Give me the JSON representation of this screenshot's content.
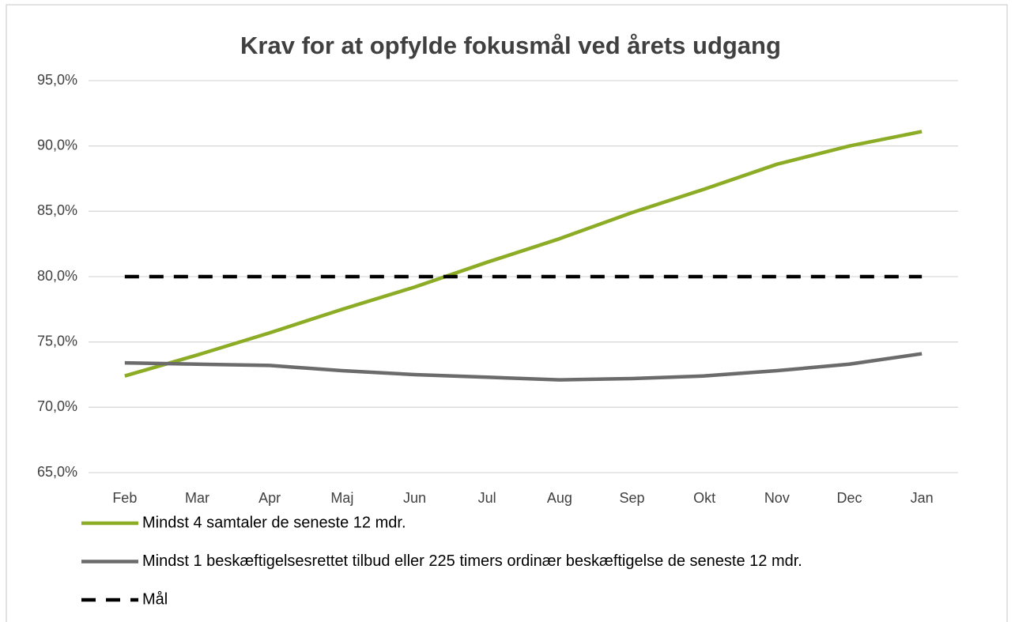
{
  "chart_data": {
    "type": "line",
    "title": "Krav for at opfylde fokusmål ved årets udgang",
    "categories": [
      "Feb",
      "Mar",
      "Apr",
      "Maj",
      "Jun",
      "Jul",
      "Aug",
      "Sep",
      "Okt",
      "Nov",
      "Dec",
      "Jan"
    ],
    "series": [
      {
        "name": "Mindst 4 samtaler de seneste 12 mdr.",
        "color": "#8cac26",
        "dash": "solid",
        "values": [
          72.4,
          74.0,
          75.7,
          77.5,
          79.2,
          81.1,
          82.9,
          84.9,
          86.7,
          88.6,
          90.0,
          91.1
        ]
      },
      {
        "name": "Mindst 1 beskæftigelsesrettet tilbud eller 225 timers ordinær beskæftigelse de seneste 12 mdr.",
        "color": "#6b6b6b",
        "dash": "solid",
        "values": [
          73.4,
          73.3,
          73.2,
          72.8,
          72.5,
          72.3,
          72.1,
          72.2,
          72.4,
          72.8,
          73.3,
          74.1
        ]
      },
      {
        "name": "Mål",
        "color": "#000000",
        "dash": "dashed",
        "values": [
          80,
          80,
          80,
          80,
          80,
          80,
          80,
          80,
          80,
          80,
          80,
          80
        ]
      }
    ],
    "ylim": [
      65,
      95
    ],
    "yticks": [
      {
        "value": 65,
        "label": "65,0%"
      },
      {
        "value": 70,
        "label": "70,0%"
      },
      {
        "value": 75,
        "label": "75,0%"
      },
      {
        "value": 80,
        "label": "80,0%"
      },
      {
        "value": 85,
        "label": "85,0%"
      },
      {
        "value": 90,
        "label": "90,0%"
      },
      {
        "value": 95,
        "label": "95,0%"
      }
    ],
    "grid": true,
    "legend": "bottom"
  }
}
